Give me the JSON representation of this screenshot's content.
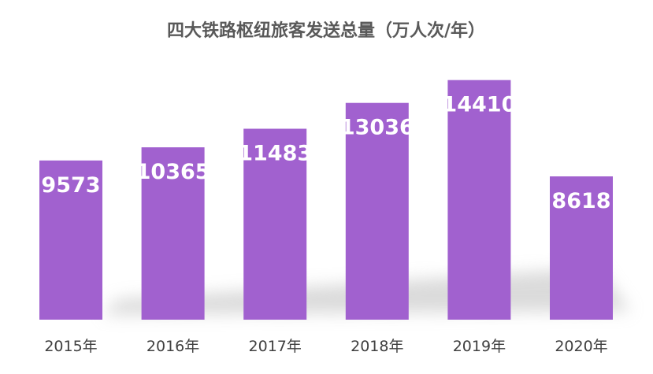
{
  "chart_data": {
    "type": "bar",
    "title": "四大铁路枢纽旅客发送总量（万人次/年）",
    "categories": [
      "2015年",
      "2016年",
      "2017年",
      "2018年",
      "2019年",
      "2020年"
    ],
    "series": [
      {
        "values": [
          9573,
          10365,
          11483,
          13036,
          14410,
          8618
        ]
      }
    ],
    "ylim": [
      0,
      17000
    ],
    "grid": false,
    "legend": "none",
    "data_labels": "inside-top",
    "colors": {
      "bar": "#a161cf",
      "label": "#ffffff",
      "title": "#595959",
      "tick": "#404040"
    }
  }
}
